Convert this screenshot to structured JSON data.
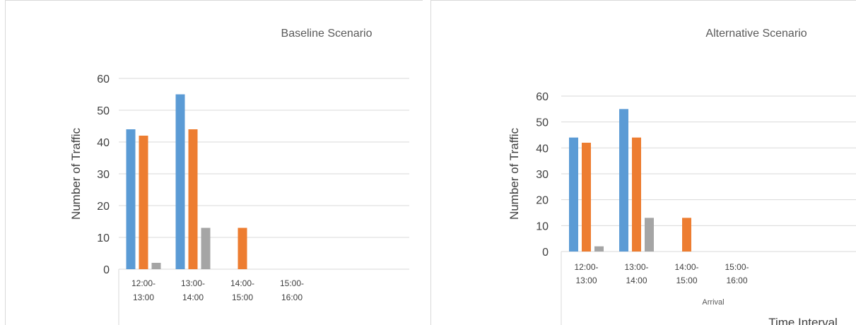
{
  "chart_data": [
    {
      "type": "bar",
      "title": "Baseline Scenario",
      "ylabel": "Number of Traffic",
      "xlabel": "",
      "categories": [
        [
          "12:00-",
          "13:00"
        ],
        [
          "13:00-",
          "14:00"
        ],
        [
          "14:00-",
          "15:00"
        ],
        [
          "15:00-",
          "16:00"
        ]
      ],
      "series": [
        {
          "values": [
            44,
            55,
            0,
            0
          ],
          "color": "#5b9bd5"
        },
        {
          "values": [
            42,
            44,
            13,
            0
          ],
          "color": "#ed7d31"
        },
        {
          "values": [
            2,
            13,
            0,
            0
          ],
          "color": "#a5a5a5"
        }
      ],
      "ylim": [
        0,
        60
      ],
      "yticks": [
        "0",
        "10",
        "20",
        "30",
        "40",
        "50",
        "60"
      ],
      "grid": true
    },
    {
      "type": "bar",
      "title": "Alternative Scenario",
      "ylabel": "Number of Traffic",
      "xlabel": "Time Interval",
      "x_sublabel": "Arrival",
      "categories": [
        [
          "12:00-",
          "13:00"
        ],
        [
          "13:00-",
          "14:00"
        ],
        [
          "14:00-",
          "15:00"
        ],
        [
          "15:00-",
          "16:00"
        ]
      ],
      "series": [
        {
          "values": [
            44,
            55,
            0,
            0
          ],
          "color": "#5b9bd5"
        },
        {
          "values": [
            42,
            44,
            13,
            0
          ],
          "color": "#ed7d31"
        },
        {
          "values": [
            2,
            13,
            0,
            0
          ],
          "color": "#a5a5a5"
        }
      ],
      "ylim": [
        0,
        60
      ],
      "yticks": [
        "0",
        "10",
        "20",
        "30",
        "40",
        "50",
        "60"
      ],
      "grid": true
    }
  ]
}
